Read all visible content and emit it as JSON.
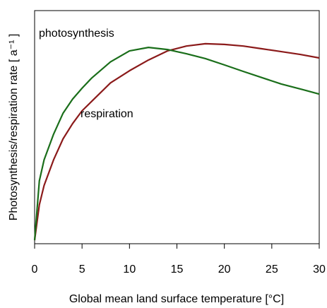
{
  "chart_data": {
    "type": "line",
    "x_label": "Global mean land surface temperature [°C]",
    "y_label": "Photosynthesis/respiration rate [ a⁻¹ ]",
    "x": [
      0,
      0.5,
      1,
      2,
      3,
      4,
      5,
      6,
      8,
      10,
      12,
      14,
      16,
      18,
      20,
      22,
      24,
      26,
      28,
      30
    ],
    "series": [
      {
        "name": "photosynthesis",
        "color": "#1a6e1a",
        "values": [
          0.015,
          0.27,
          0.36,
          0.47,
          0.56,
          0.62,
          0.667,
          0.71,
          0.78,
          0.827,
          0.842,
          0.833,
          0.815,
          0.794,
          0.767,
          0.739,
          0.712,
          0.685,
          0.664,
          0.642
        ]
      },
      {
        "name": "respiration",
        "color": "#8b1a1a",
        "values": [
          0.015,
          0.167,
          0.25,
          0.36,
          0.45,
          0.515,
          0.57,
          0.61,
          0.69,
          0.742,
          0.788,
          0.827,
          0.848,
          0.858,
          0.855,
          0.848,
          0.836,
          0.824,
          0.812,
          0.797
        ]
      }
    ],
    "xlim": [
      0,
      30
    ],
    "xticks": [
      0,
      5,
      10,
      15,
      20,
      25,
      30
    ],
    "ylim": [
      0,
      1
    ]
  }
}
